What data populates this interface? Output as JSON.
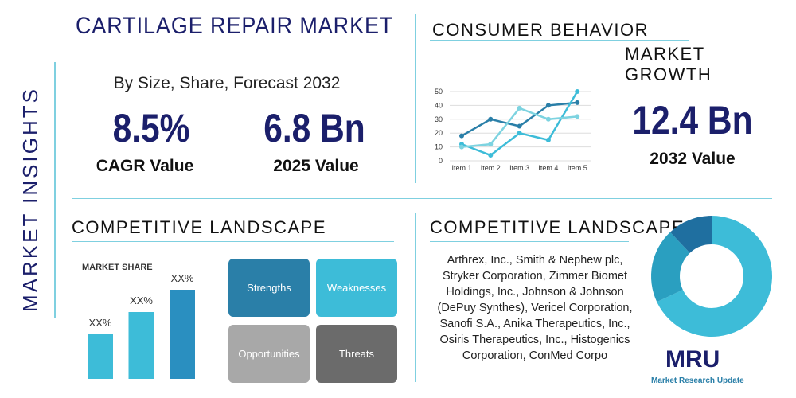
{
  "side_label": "MARKET INSIGHTS",
  "header": {
    "title": "CARTILAGE REPAIR MARKET",
    "subtitle": "By Size, Share, Forecast 2032"
  },
  "stats": [
    {
      "value": "8.5%",
      "label": "CAGR Value"
    },
    {
      "value": "6.8 Bn",
      "label": "2025 Value"
    }
  ],
  "consumer": {
    "title": "CONSUMER BEHAVIOR",
    "subtitle": "MARKET GROWTH",
    "stat": {
      "value": "12.4 Bn",
      "label": "2032 Value"
    },
    "chart": {
      "type": "line",
      "categories": [
        "Item 1",
        "Item 2",
        "Item 3",
        "Item 4",
        "Item 5"
      ],
      "ylim": [
        0,
        50
      ],
      "yticks": [
        0,
        10,
        20,
        30,
        40,
        50
      ],
      "grid": true,
      "series": [
        {
          "color": "#2a7fa8",
          "values": [
            18,
            30,
            25,
            40,
            42
          ]
        },
        {
          "color": "#3dbcd8",
          "values": [
            12,
            4,
            20,
            15,
            50
          ]
        },
        {
          "color": "#7dd3e0",
          "values": [
            10,
            12,
            38,
            30,
            32
          ]
        }
      ]
    }
  },
  "competitive_left": {
    "title": "COMPETITIVE LANDSCAPE",
    "chart": {
      "type": "bar",
      "title": "MARKET SHARE",
      "values": [
        20,
        30,
        40
      ],
      "value_labels": [
        "XX%",
        "XX%",
        "XX%"
      ],
      "colors": [
        "#3dbcd8",
        "#3dbcd8",
        "#2a8fc0"
      ]
    },
    "swot": [
      {
        "label": "Strengths",
        "color": "#2a7fa8"
      },
      {
        "label": "Weaknesses",
        "color": "#3dbcd8"
      },
      {
        "label": "Opportunities",
        "color": "#a8a8a8"
      },
      {
        "label": "Threats",
        "color": "#6b6b6b"
      }
    ]
  },
  "competitive_right": {
    "title": "COMPETITIVE LANDSCAPE",
    "text": "Arthrex, Inc., Smith & Nephew plc, Stryker Corporation, Zimmer Biomet Holdings, Inc., Johnson & Johnson (DePuy Synthes), Vericel Corporation, Sanofi S.A., Anika Therapeutics, Inc., Osiris Therapeutics, Inc., Histogenics Corporation, ConMed Corpo",
    "chart": {
      "type": "donut",
      "values": [
        68,
        20,
        12
      ],
      "colors": [
        "#3dbcd8",
        "#2a9fc0",
        "#1f6fa0"
      ]
    }
  },
  "logo": {
    "mark": "MRU",
    "name": "Market Research Update"
  }
}
